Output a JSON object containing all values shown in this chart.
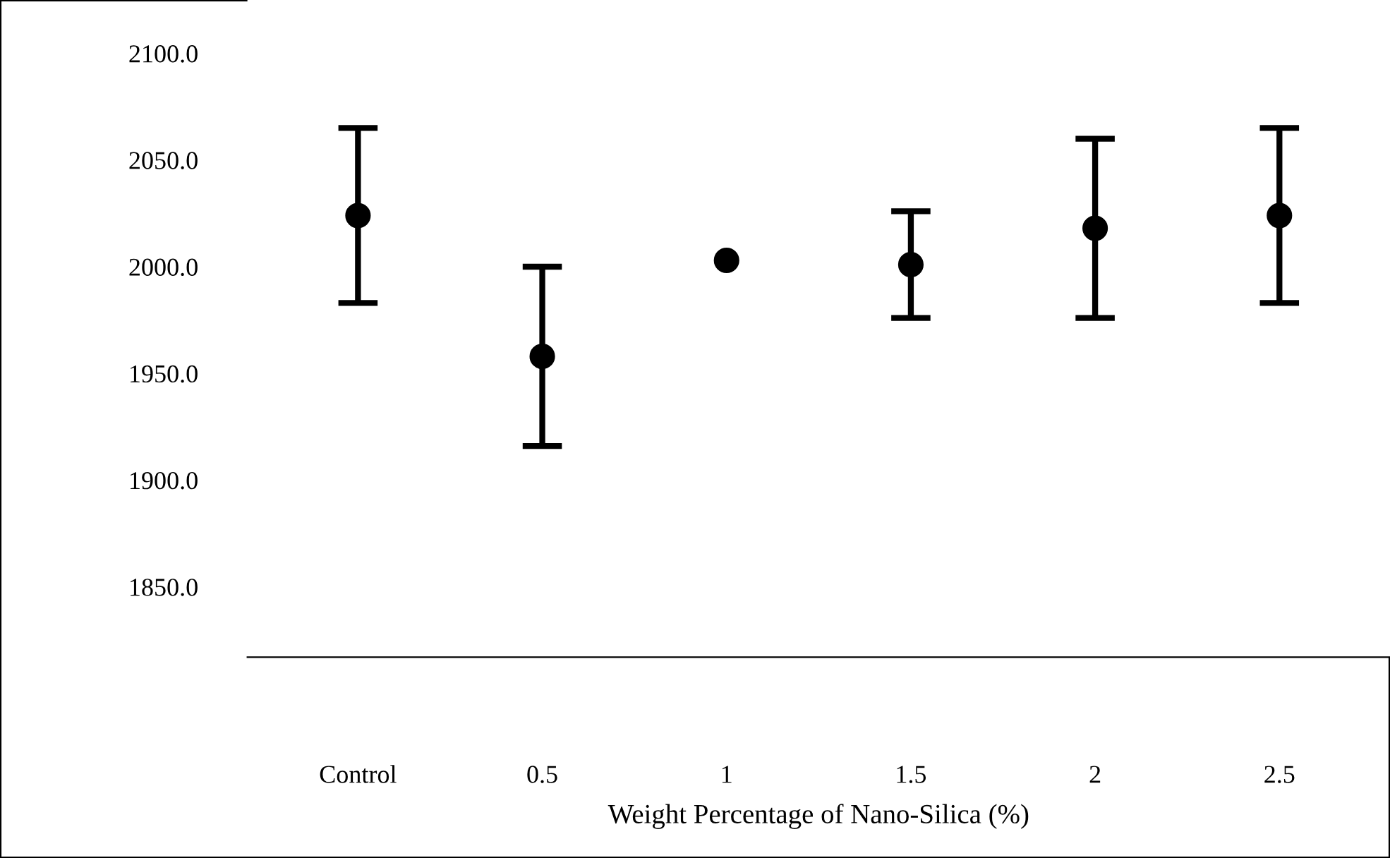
{
  "chart_data": {
    "type": "scatter",
    "xlabel": "Weight Percentage of Nano-Silica (%)",
    "categories": [
      "Control",
      "0.5",
      "1",
      "1.5",
      "2",
      "2.5"
    ],
    "series": [
      {
        "color": "#000000",
        "values": [
          2024,
          1958,
          2003,
          2001,
          2018,
          2024
        ],
        "errors": [
          [
            1983,
            2065
          ],
          [
            1916,
            2000
          ],
          null,
          [
            1976,
            2026
          ],
          [
            1976,
            2060
          ],
          [
            1983,
            2065
          ]
        ]
      }
    ],
    "ylim": [
      1817,
      2125
    ],
    "yticks": [
      {
        "value": 1850,
        "label": "1850.0"
      },
      {
        "value": 1900,
        "label": "1900.0"
      },
      {
        "value": 1950,
        "label": "1950.0"
      },
      {
        "value": 2000,
        "label": "2000.0"
      },
      {
        "value": 2050,
        "label": "2050.0"
      },
      {
        "value": 2100,
        "label": "2100.0"
      }
    ],
    "grid": false,
    "marker": "circle"
  }
}
